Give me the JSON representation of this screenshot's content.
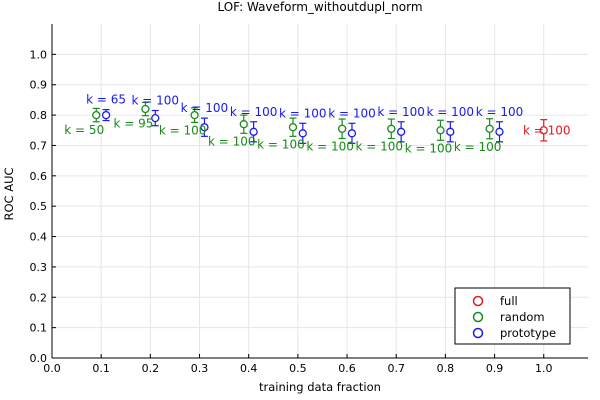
{
  "chart_data": {
    "type": "scatter",
    "title": "LOF: Waveform_withoutdupl_norm",
    "xlabel": "training data fraction",
    "ylabel": "ROC AUC",
    "xlim": [
      0.0,
      1.09
    ],
    "ylim": [
      0.0,
      1.1
    ],
    "xticks": [
      0.0,
      0.1,
      0.2,
      0.3,
      0.4,
      0.5,
      0.6,
      0.7,
      0.8,
      0.9,
      1.0
    ],
    "xtick_labels": [
      "0.0",
      "0.1",
      "0.2",
      "0.3",
      "0.4",
      "0.5",
      "0.6",
      "0.7",
      "0.8",
      "0.9",
      "1.0"
    ],
    "yticks": [
      0.0,
      0.1,
      0.2,
      0.3,
      0.4,
      0.5,
      0.6,
      0.7,
      0.8,
      0.9,
      1.0
    ],
    "ytick_labels": [
      "0.0",
      "0.1",
      "0.2",
      "0.3",
      "0.4",
      "0.5",
      "0.6",
      "0.7",
      "0.8",
      "0.9",
      "1.0"
    ],
    "grid": true,
    "legend_position": "bottom-right",
    "series": [
      {
        "name": "full",
        "color": "#e41a1c",
        "points": [
          {
            "x": 1.0,
            "y": 0.75,
            "err": 0.035,
            "label": "k = 100",
            "label_pos": "left"
          }
        ]
      },
      {
        "name": "random",
        "color": "#1a8a1a",
        "points": [
          {
            "x": 0.09,
            "y": 0.8,
            "err": 0.022,
            "label": "k = 50",
            "label_pos": "below"
          },
          {
            "x": 0.19,
            "y": 0.82,
            "err": 0.022,
            "label": "k = 95",
            "label_pos": "below"
          },
          {
            "x": 0.29,
            "y": 0.8,
            "err": 0.024,
            "label": "k = 100",
            "label_pos": "below"
          },
          {
            "x": 0.39,
            "y": 0.77,
            "err": 0.03,
            "label": "k = 100",
            "label_pos": "below"
          },
          {
            "x": 0.49,
            "y": 0.76,
            "err": 0.03,
            "label": "k = 100",
            "label_pos": "below"
          },
          {
            "x": 0.59,
            "y": 0.755,
            "err": 0.032,
            "label": "k = 100",
            "label_pos": "below"
          },
          {
            "x": 0.69,
            "y": 0.755,
            "err": 0.032,
            "label": "k = 100",
            "label_pos": "below"
          },
          {
            "x": 0.79,
            "y": 0.75,
            "err": 0.033,
            "label": "k = 100",
            "label_pos": "below"
          },
          {
            "x": 0.89,
            "y": 0.755,
            "err": 0.033,
            "label": "k = 100",
            "label_pos": "below"
          }
        ]
      },
      {
        "name": "prototype",
        "color": "#1a1aee",
        "points": [
          {
            "x": 0.11,
            "y": 0.8,
            "err": 0.018,
            "label": "k = 65",
            "label_pos": "above"
          },
          {
            "x": 0.21,
            "y": 0.79,
            "err": 0.025,
            "label": "k = 100",
            "label_pos": "above"
          },
          {
            "x": 0.31,
            "y": 0.76,
            "err": 0.03,
            "label": "k = 100",
            "label_pos": "above"
          },
          {
            "x": 0.41,
            "y": 0.745,
            "err": 0.033,
            "label": "k = 100",
            "label_pos": "above"
          },
          {
            "x": 0.51,
            "y": 0.74,
            "err": 0.033,
            "label": "k = 100",
            "label_pos": "above"
          },
          {
            "x": 0.61,
            "y": 0.74,
            "err": 0.033,
            "label": "k = 100",
            "label_pos": "above"
          },
          {
            "x": 0.71,
            "y": 0.745,
            "err": 0.033,
            "label": "k = 100",
            "label_pos": "above"
          },
          {
            "x": 0.81,
            "y": 0.745,
            "err": 0.033,
            "label": "k = 100",
            "label_pos": "above"
          },
          {
            "x": 0.91,
            "y": 0.745,
            "err": 0.033,
            "label": "k = 100",
            "label_pos": "above"
          }
        ]
      }
    ]
  }
}
